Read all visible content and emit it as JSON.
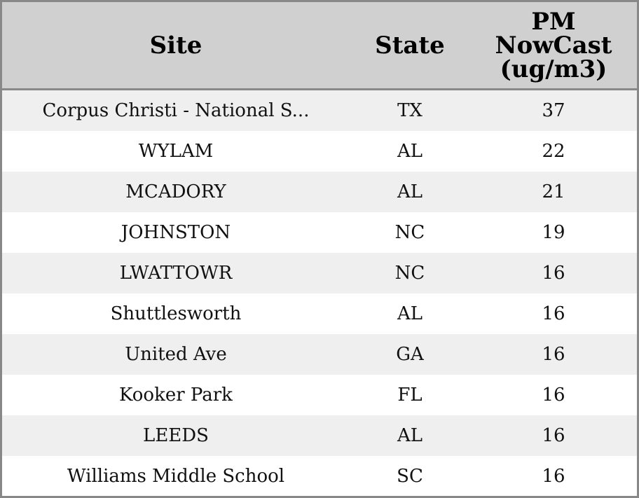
{
  "chart_data": {
    "type": "table",
    "columns": [
      "Site",
      "State",
      "PM\nNowCast\n(ug/m3)"
    ],
    "rows": [
      [
        "Corpus Christi - National S...",
        "TX",
        "37"
      ],
      [
        "WYLAM",
        "AL",
        "22"
      ],
      [
        "MCADORY",
        "AL",
        "21"
      ],
      [
        "JOHNSTON",
        "NC",
        "19"
      ],
      [
        "LWATTOWR",
        "NC",
        "16"
      ],
      [
        "Shuttlesworth",
        "AL",
        "16"
      ],
      [
        "United Ave",
        "GA",
        "16"
      ],
      [
        "Kooker Park",
        "FL",
        "16"
      ],
      [
        "LEEDS",
        "AL",
        "16"
      ],
      [
        "Williams Middle School",
        "SC",
        "16"
      ]
    ]
  },
  "colors": {
    "header_bg": "#d0d0d0",
    "row_alt_bg": "#efefef",
    "row_bg": "#ffffff",
    "border": "#888888"
  }
}
